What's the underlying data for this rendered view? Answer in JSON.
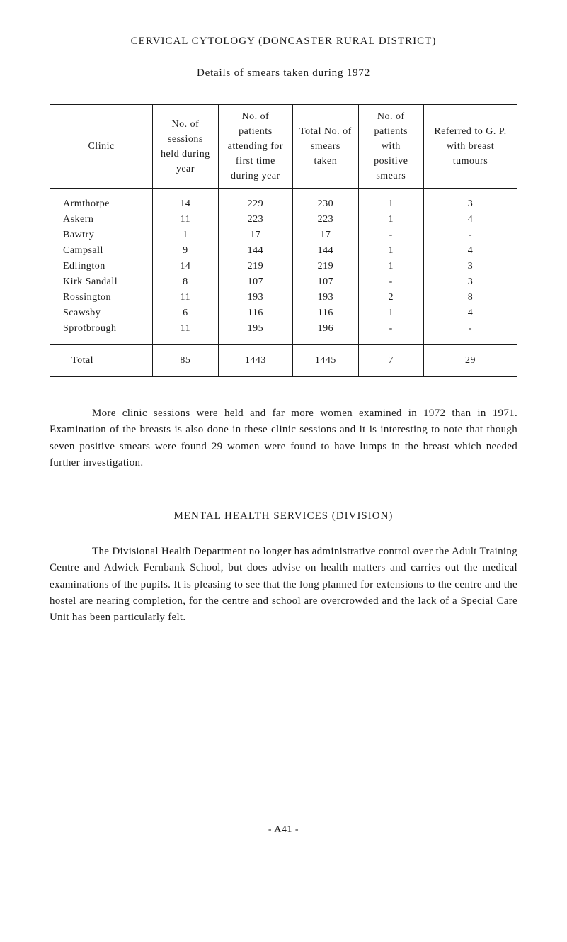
{
  "title": "CERVICAL CYTOLOGY (DONCASTER RURAL DISTRICT)",
  "subtitle": "Details of smears taken during 1972",
  "table": {
    "headers": {
      "clinic": "Clinic",
      "sessions": "No. of sessions held during year",
      "attending": "No. of patients attending for first time during year",
      "smears": "Total No. of smears taken",
      "positive": "No. of patients with positive smears",
      "referred": "Referred to G. P. with breast tumours"
    },
    "rows": [
      {
        "clinic": "Armthorpe",
        "sessions": "14",
        "attending": "229",
        "smears": "230",
        "positive": "1",
        "referred": "3"
      },
      {
        "clinic": "Askern",
        "sessions": "11",
        "attending": "223",
        "smears": "223",
        "positive": "1",
        "referred": "4"
      },
      {
        "clinic": "Bawtry",
        "sessions": "1",
        "attending": "17",
        "smears": "17",
        "positive": "-",
        "referred": "-"
      },
      {
        "clinic": "Campsall",
        "sessions": "9",
        "attending": "144",
        "smears": "144",
        "positive": "1",
        "referred": "4"
      },
      {
        "clinic": "Edlington",
        "sessions": "14",
        "attending": "219",
        "smears": "219",
        "positive": "1",
        "referred": "3"
      },
      {
        "clinic": "Kirk Sandall",
        "sessions": "8",
        "attending": "107",
        "smears": "107",
        "positive": "-",
        "referred": "3"
      },
      {
        "clinic": "Rossington",
        "sessions": "11",
        "attending": "193",
        "smears": "193",
        "positive": "2",
        "referred": "8"
      },
      {
        "clinic": "Scawsby",
        "sessions": "6",
        "attending": "116",
        "smears": "116",
        "positive": "1",
        "referred": "4"
      },
      {
        "clinic": "Sprotbrough",
        "sessions": "11",
        "attending": "195",
        "smears": "196",
        "positive": "-",
        "referred": "-"
      }
    ],
    "total": {
      "clinic": "Total",
      "sessions": "85",
      "attending": "1443",
      "smears": "1445",
      "positive": "7",
      "referred": "29"
    },
    "col_widths": [
      "22%",
      "14%",
      "16%",
      "14%",
      "14%",
      "20%"
    ]
  },
  "paragraph1": "More clinic sessions were held and far more women examined in 1972 than in 1971. Examination of the breasts is also done in these clinic sessions and it is interesting to note that though seven positive smears were found 29 women were found to have lumps in the breast which needed further investigation.",
  "section_heading": "MENTAL HEALTH SERVICES (DIVISION)",
  "paragraph2": "The Divisional Health Department no longer has administrative control over the Adult Training Centre and Adwick Fernbank School, but does advise on health matters and carries out the medical examinations of the pupils. It is pleasing to see that the long planned for extensions to the centre and the hostel are nearing completion, for the centre and school are overcrowded and the lack of a Special Care Unit has been particularly felt.",
  "page_number": "- A41 -"
}
